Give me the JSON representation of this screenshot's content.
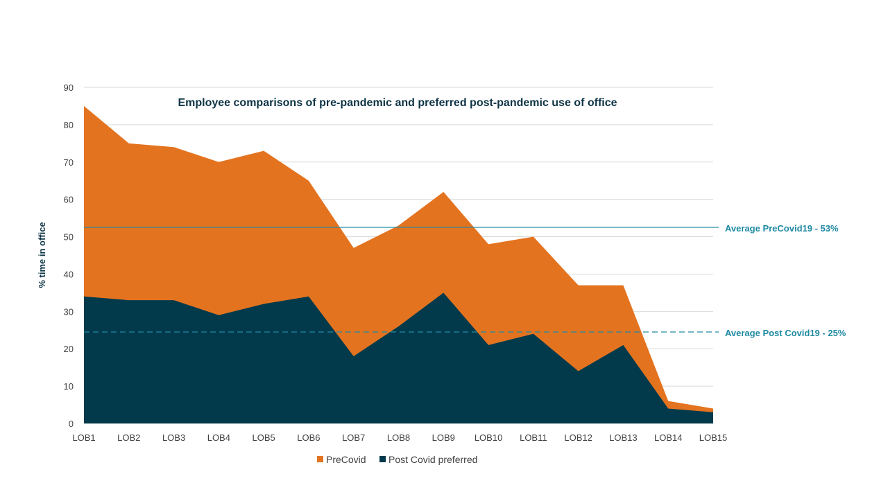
{
  "chart_data": {
    "type": "area",
    "title": "Employee comparisons of pre-pandemic and preferred post-pandemic use of office",
    "ylabel": "% time in office",
    "xlabel": "",
    "ylim": [
      0,
      90
    ],
    "yticks": [
      0,
      10,
      20,
      30,
      40,
      50,
      60,
      70,
      80,
      90
    ],
    "grid": true,
    "legend_position": "bottom",
    "categories": [
      "LOB1",
      "LOB2",
      "LOB3",
      "LOB4",
      "LOB5",
      "LOB6",
      "LOB7",
      "LOB8",
      "LOB9",
      "LOB10",
      "LOB11",
      "LOB12",
      "LOB13",
      "LOB14",
      "LOB15"
    ],
    "series": [
      {
        "name": "PreCovid",
        "color": "#e47320",
        "values": [
          85,
          75,
          74,
          70,
          73,
          65,
          47,
          53,
          62,
          48,
          50,
          37,
          37,
          6,
          4
        ]
      },
      {
        "name": "Post Covid preferred",
        "color": "#023a4b",
        "values": [
          34,
          33,
          33,
          29,
          32,
          34,
          18,
          26,
          35,
          21,
          24,
          14,
          21,
          4,
          3
        ]
      }
    ],
    "reference_lines": [
      {
        "label": "Average PreCovid19 - 53%",
        "value": 52.5,
        "style": "solid",
        "color": "#1f8aa3"
      },
      {
        "label": "Average Post Covid19 - 25%",
        "value": 24.5,
        "style": "dashed",
        "color": "#1f8aa3"
      }
    ]
  }
}
